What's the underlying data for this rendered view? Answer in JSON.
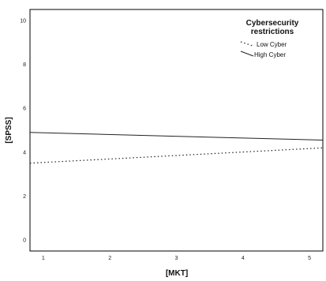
{
  "chart_data": {
    "type": "line",
    "xlabel": "[MKT]",
    "ylabel": "[SPSS]",
    "xlim": [
      0.8,
      5.2
    ],
    "ylim": [
      -0.5,
      10.5
    ],
    "x_ticks": [
      "1",
      "2",
      "3",
      "4",
      "5"
    ],
    "y_ticks": [
      "0",
      "2",
      "4",
      "6",
      "8",
      "10"
    ],
    "grid": false,
    "legend": {
      "title_lines": [
        "Cybersecurity",
        "restrictions"
      ],
      "placement": "top-right"
    },
    "series": [
      {
        "name": "Low Cyber",
        "style": "dotted",
        "x": [
          0.8,
          5.2
        ],
        "y": [
          3.5,
          4.2
        ]
      },
      {
        "name": "High Cyber",
        "style": "solid",
        "x": [
          0.8,
          5.2
        ],
        "y": [
          4.9,
          4.55
        ]
      }
    ]
  }
}
